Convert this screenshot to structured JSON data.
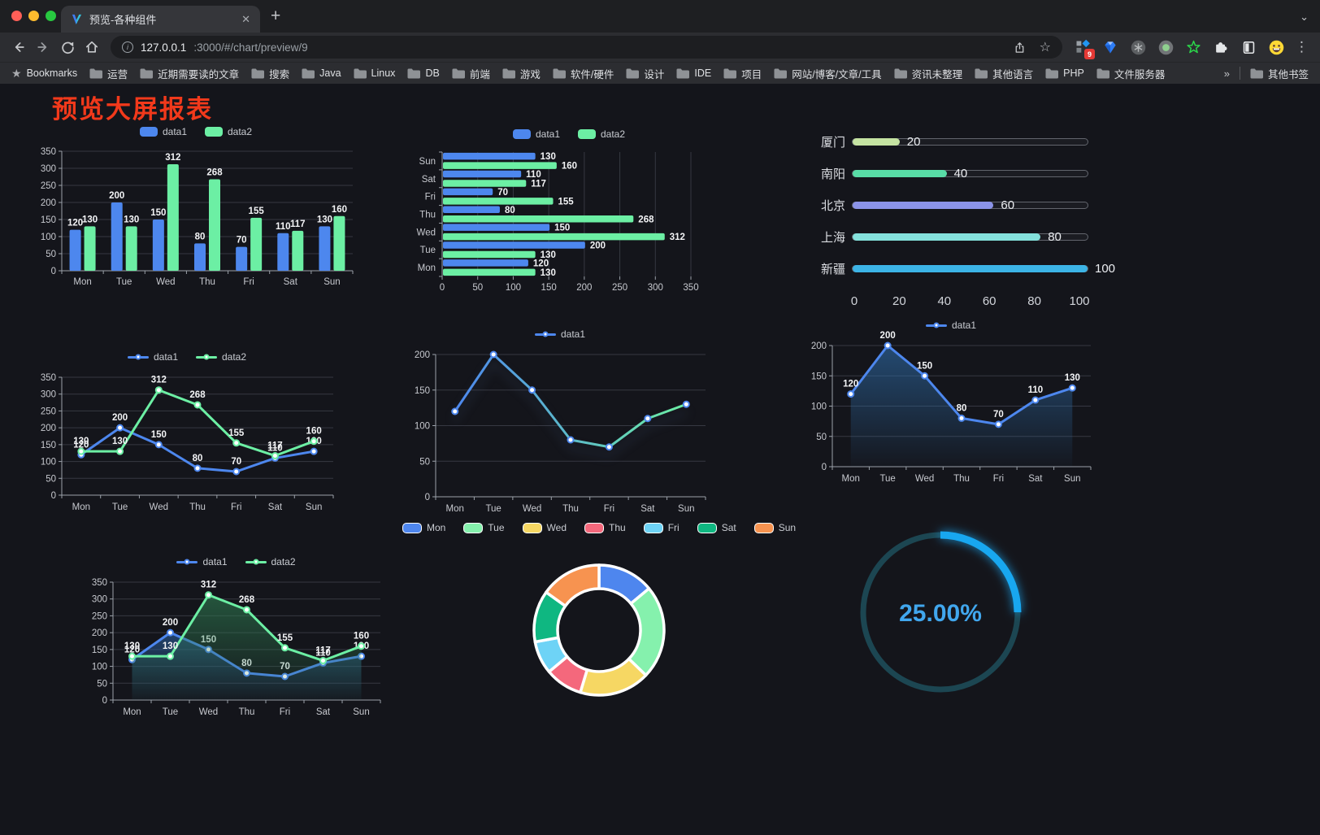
{
  "browser": {
    "tab_title": "预览-各种组件",
    "close_glyph": "✕",
    "new_tab_glyph": "+",
    "chevron_glyph": "⌄",
    "url_host": "127.0.0.1",
    "url_rest": ":3000/#/chart/preview/9",
    "star_glyph": "☆",
    "menu_glyph": "⋮",
    "ext_badge": "9",
    "bookmarks_root": "Bookmarks",
    "bookmark_folders": [
      "运营",
      "近期需要读的文章",
      "搜索",
      "Java",
      "Linux",
      "DB",
      "前端",
      "游戏",
      "软件/硬件",
      "设计",
      "IDE",
      "项目",
      "网站/博客/文章/工具",
      "资讯未整理",
      "其他语言",
      "PHP",
      "文件服务器"
    ],
    "overflow_glyph": "»",
    "other_bookmarks": "其他书签",
    "traffic_colors": [
      "#ff5f57",
      "#febc2e",
      "#28c840"
    ]
  },
  "page": {
    "title": "预览大屏报表",
    "title_color": "#f2391b",
    "background": "#14151b"
  },
  "chart_data": [
    {
      "type": "bar",
      "legend": true,
      "labels": true,
      "categories": [
        "Mon",
        "Tue",
        "Wed",
        "Thu",
        "Fri",
        "Sat",
        "Sun"
      ],
      "series": [
        {
          "name": "data1",
          "color": "#4d87ee",
          "values": [
            120,
            200,
            150,
            80,
            70,
            110,
            130
          ]
        },
        {
          "name": "data2",
          "color": "#6cefa4",
          "values": [
            130,
            130,
            312,
            268,
            155,
            117,
            160
          ]
        }
      ],
      "ylim": [
        0,
        350
      ],
      "ytick": 50,
      "grid": true
    },
    {
      "type": "hbar",
      "legend": true,
      "labels": true,
      "categories": [
        "Mon",
        "Tue",
        "Wed",
        "Thu",
        "Fri",
        "Sat",
        "Sun"
      ],
      "series": [
        {
          "name": "data1",
          "color": "#4d87ee",
          "values": [
            120,
            200,
            150,
            80,
            70,
            110,
            130
          ]
        },
        {
          "name": "data2",
          "color": "#6cefa4",
          "values": [
            130,
            130,
            312,
            268,
            155,
            117,
            160
          ]
        }
      ],
      "xlim": [
        0,
        350
      ],
      "xtick": 50,
      "grid": true
    },
    {
      "type": "progress",
      "max": 100,
      "rows": [
        {
          "label": "厦门",
          "value": 20,
          "color": "#c5e3a2"
        },
        {
          "label": "南阳",
          "value": 40,
          "color": "#58dca6"
        },
        {
          "label": "北京",
          "value": 60,
          "color": "#8b93e8"
        },
        {
          "label": "上海",
          "value": 80,
          "color": "#84e1dc"
        },
        {
          "label": "新疆",
          "value": 100,
          "color": "#3cb4e6"
        }
      ],
      "axis_ticks": [
        0,
        20,
        40,
        60,
        80,
        100
      ]
    },
    {
      "type": "line",
      "legend": true,
      "labels": true,
      "markers": true,
      "categories": [
        "Mon",
        "Tue",
        "Wed",
        "Thu",
        "Fri",
        "Sat",
        "Sun"
      ],
      "series": [
        {
          "name": "data1",
          "color": "#4d87ee",
          "values": [
            120,
            200,
            150,
            80,
            70,
            110,
            130
          ]
        },
        {
          "name": "data2",
          "color": "#6cefa4",
          "values": [
            130,
            130,
            312,
            268,
            155,
            117,
            160
          ]
        }
      ],
      "ylim": [
        0,
        350
      ],
      "ytick": 50,
      "grid": true
    },
    {
      "type": "line",
      "legend": true,
      "labels": false,
      "markers": true,
      "categories": [
        "Mon",
        "Tue",
        "Wed",
        "Thu",
        "Fri",
        "Sat",
        "Sun"
      ],
      "series": [
        {
          "name": "data1",
          "gradient": [
            "#4d87ee",
            "#6cefa4"
          ],
          "values": [
            120,
            200,
            150,
            80,
            70,
            110,
            130
          ],
          "shadow": true
        }
      ],
      "ylim": [
        0,
        200
      ],
      "ytick": 50,
      "grid": true
    },
    {
      "type": "line",
      "legend": true,
      "labels": true,
      "markers": true,
      "categories": [
        "Mon",
        "Tue",
        "Wed",
        "Thu",
        "Fri",
        "Sat",
        "Sun"
      ],
      "series": [
        {
          "name": "data1",
          "color": "#4d87ee",
          "area": "#2e6ca8",
          "values": [
            120,
            200,
            150,
            80,
            70,
            110,
            130
          ]
        }
      ],
      "ylim": [
        0,
        200
      ],
      "ytick": 50,
      "grid": true
    },
    {
      "type": "line",
      "legend": true,
      "labels": true,
      "markers": true,
      "categories": [
        "Mon",
        "Tue",
        "Wed",
        "Thu",
        "Fri",
        "Sat",
        "Sun"
      ],
      "series": [
        {
          "name": "data1",
          "color": "#4d87ee",
          "area": "#2b5f9e",
          "values": [
            120,
            200,
            150,
            80,
            70,
            110,
            130
          ]
        },
        {
          "name": "data2",
          "color": "#6cefa4",
          "area": "#2f7d52",
          "values": [
            130,
            130,
            312,
            268,
            155,
            117,
            160
          ]
        }
      ],
      "ylim": [
        0,
        350
      ],
      "ytick": 50,
      "grid": true
    },
    {
      "type": "donut",
      "legend": true,
      "items": [
        {
          "label": "Mon",
          "value": 120,
          "color": "#4e86ee"
        },
        {
          "label": "Tue",
          "value": 200,
          "color": "#85f1ad"
        },
        {
          "label": "Wed",
          "value": 150,
          "color": "#f6d763"
        },
        {
          "label": "Thu",
          "value": 80,
          "color": "#f4687c"
        },
        {
          "label": "Fri",
          "value": 70,
          "color": "#6ed3f6"
        },
        {
          "label": "Sat",
          "value": 110,
          "color": "#0fb781"
        },
        {
          "label": "Sun",
          "value": 130,
          "color": "#f79350"
        }
      ]
    },
    {
      "type": "gauge",
      "value": 25,
      "display": "25.00%",
      "arc_color": "#18a7f0",
      "track_color": "#1c4652",
      "text_color": "#41a7ee"
    }
  ]
}
